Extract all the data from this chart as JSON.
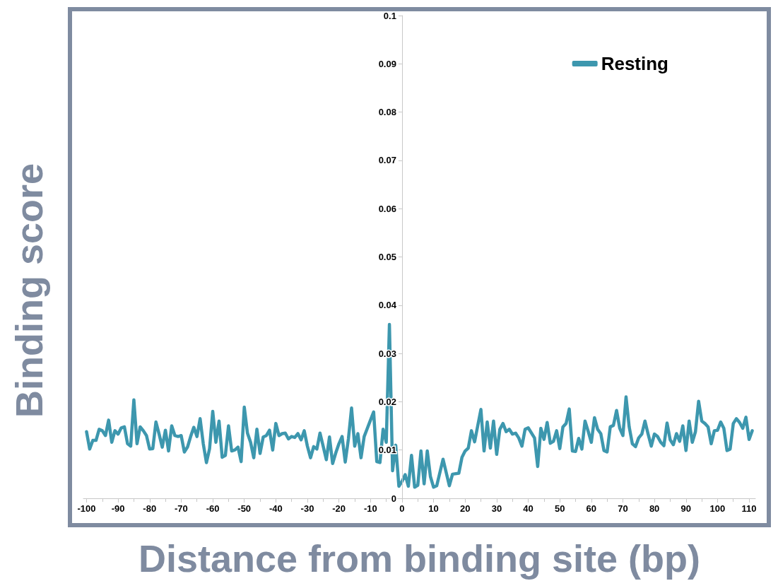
{
  "chart_data": {
    "type": "line",
    "xlabel": "Distance from binding site (bp)",
    "ylabel": "Binding score",
    "legend": "top right",
    "grid": false,
    "marker": "none",
    "line_style": "solid",
    "xlim": [
      -101,
      112
    ],
    "xticks": [
      -100,
      -90,
      -80,
      -70,
      -60,
      -50,
      -40,
      -30,
      -20,
      -10,
      0,
      10,
      20,
      30,
      40,
      50,
      60,
      70,
      80,
      90,
      100,
      110
    ],
    "ylim": [
      0,
      0.1
    ],
    "yticks": [
      0,
      0.01,
      0.02,
      0.03,
      0.04,
      0.05,
      0.06,
      0.07,
      0.08,
      0.09,
      0.1
    ],
    "series": [
      {
        "name": "Resting",
        "color": "#3d97ae",
        "x": [
          -100,
          -99,
          -98,
          -97,
          -96,
          -95,
          -94,
          -93,
          -92,
          -91,
          -90,
          -89,
          -88,
          -87,
          -86,
          -85,
          -84,
          -83,
          -82,
          -81,
          -80,
          -79,
          -78,
          -77,
          -76,
          -75,
          -74,
          -73,
          -72,
          -71,
          -70,
          -69,
          -68,
          -67,
          -66,
          -65,
          -64,
          -63,
          -62,
          -61,
          -60,
          -59,
          -58,
          -57,
          -56,
          -55,
          -54,
          -53,
          -52,
          -51,
          -50,
          -49,
          -48,
          -47,
          -46,
          -45,
          -44,
          -43,
          -42,
          -41,
          -40,
          -39,
          -38,
          -37,
          -36,
          -35,
          -34,
          -33,
          -32,
          -31,
          -30,
          -29,
          -28,
          -27,
          -26,
          -25,
          -24,
          -23,
          -22,
          -21,
          -20,
          -19,
          -18,
          -17,
          -16,
          -15,
          -14,
          -13,
          -12,
          -11,
          -10,
          -9,
          -8,
          -7,
          -6,
          -5,
          -4,
          -3,
          -2,
          -1,
          0,
          1,
          2,
          3,
          4,
          5,
          6,
          7,
          8,
          9,
          10,
          11,
          13,
          15,
          16,
          18,
          19,
          20,
          21,
          22,
          23,
          25,
          26,
          27,
          28,
          29,
          30,
          31,
          32,
          33,
          34,
          35,
          36,
          37,
          38,
          39,
          40,
          42,
          43,
          44,
          45,
          46,
          47,
          48,
          49,
          50,
          51,
          52,
          53,
          54,
          55,
          56,
          57,
          58,
          59,
          60,
          61,
          62,
          63,
          64,
          65,
          66,
          67,
          68,
          69,
          70,
          71,
          72,
          73,
          74,
          75,
          76,
          77,
          78,
          79,
          80,
          81,
          82,
          83,
          84,
          85,
          86,
          87,
          88,
          89,
          90,
          91,
          92,
          93,
          94,
          95,
          96,
          97,
          98,
          99,
          100,
          101,
          102,
          103,
          104,
          105,
          106,
          107,
          108,
          109,
          110,
          111
        ],
        "values": [
          0.0138,
          0.0102,
          0.012,
          0.012,
          0.0143,
          0.014,
          0.013,
          0.0162,
          0.0116,
          0.014,
          0.0133,
          0.0146,
          0.0148,
          0.0113,
          0.0108,
          0.0204,
          0.0113,
          0.0148,
          0.014,
          0.013,
          0.0102,
          0.0103,
          0.0158,
          0.0133,
          0.0106,
          0.0141,
          0.0098,
          0.015,
          0.013,
          0.0128,
          0.013,
          0.0096,
          0.0106,
          0.0128,
          0.0147,
          0.0128,
          0.0165,
          0.0113,
          0.0074,
          0.0103,
          0.018,
          0.0116,
          0.016,
          0.0085,
          0.0089,
          0.015,
          0.0098,
          0.01,
          0.0106,
          0.0076,
          0.0189,
          0.0135,
          0.0116,
          0.0084,
          0.0143,
          0.0093,
          0.0127,
          0.013,
          0.0141,
          0.01,
          0.0155,
          0.013,
          0.0134,
          0.0135,
          0.0123,
          0.0128,
          0.0126,
          0.0134,
          0.0121,
          0.014,
          0.0108,
          0.0084,
          0.0107,
          0.0102,
          0.0135,
          0.0108,
          0.008,
          0.0127,
          0.0072,
          0.0094,
          0.0113,
          0.0128,
          0.0075,
          0.0123,
          0.0187,
          0.0108,
          0.0134,
          0.0084,
          0.0128,
          0.0145,
          0.0162,
          0.0179,
          0.0076,
          0.0074,
          0.0143,
          0.0116,
          0.036,
          0.0057,
          0.011,
          0.0025,
          0.0035,
          0.0049,
          0.0025,
          0.0089,
          0.0023,
          0.0027,
          0.0098,
          0.003,
          0.0098,
          0.0045,
          0.0023,
          0.0026,
          0.0081,
          0.0026,
          0.005,
          0.0052,
          0.0085,
          0.0098,
          0.0104,
          0.014,
          0.0117,
          0.0184,
          0.0098,
          0.0158,
          0.0104,
          0.016,
          0.0091,
          0.0143,
          0.0155,
          0.0138,
          0.0143,
          0.0133,
          0.0135,
          0.0125,
          0.0108,
          0.0143,
          0.0146,
          0.0125,
          0.0066,
          0.0145,
          0.0122,
          0.0157,
          0.0114,
          0.0118,
          0.014,
          0.0103,
          0.0148,
          0.0155,
          0.0185,
          0.0098,
          0.0097,
          0.0124,
          0.0102,
          0.016,
          0.0139,
          0.0116,
          0.0167,
          0.0143,
          0.0134,
          0.0099,
          0.0096,
          0.0148,
          0.0151,
          0.0182,
          0.0145,
          0.013,
          0.021,
          0.0148,
          0.0113,
          0.0107,
          0.0125,
          0.0133,
          0.016,
          0.0133,
          0.0108,
          0.0133,
          0.0128,
          0.0116,
          0.0109,
          0.0156,
          0.0121,
          0.0111,
          0.0134,
          0.0118,
          0.015,
          0.0099,
          0.016,
          0.0116,
          0.0138,
          0.0201,
          0.016,
          0.0155,
          0.0148,
          0.0113,
          0.014,
          0.0141,
          0.0158,
          0.0145,
          0.0099,
          0.0102,
          0.0155,
          0.0165,
          0.0157,
          0.0145,
          0.0168,
          0.0122,
          0.014
        ]
      }
    ]
  }
}
